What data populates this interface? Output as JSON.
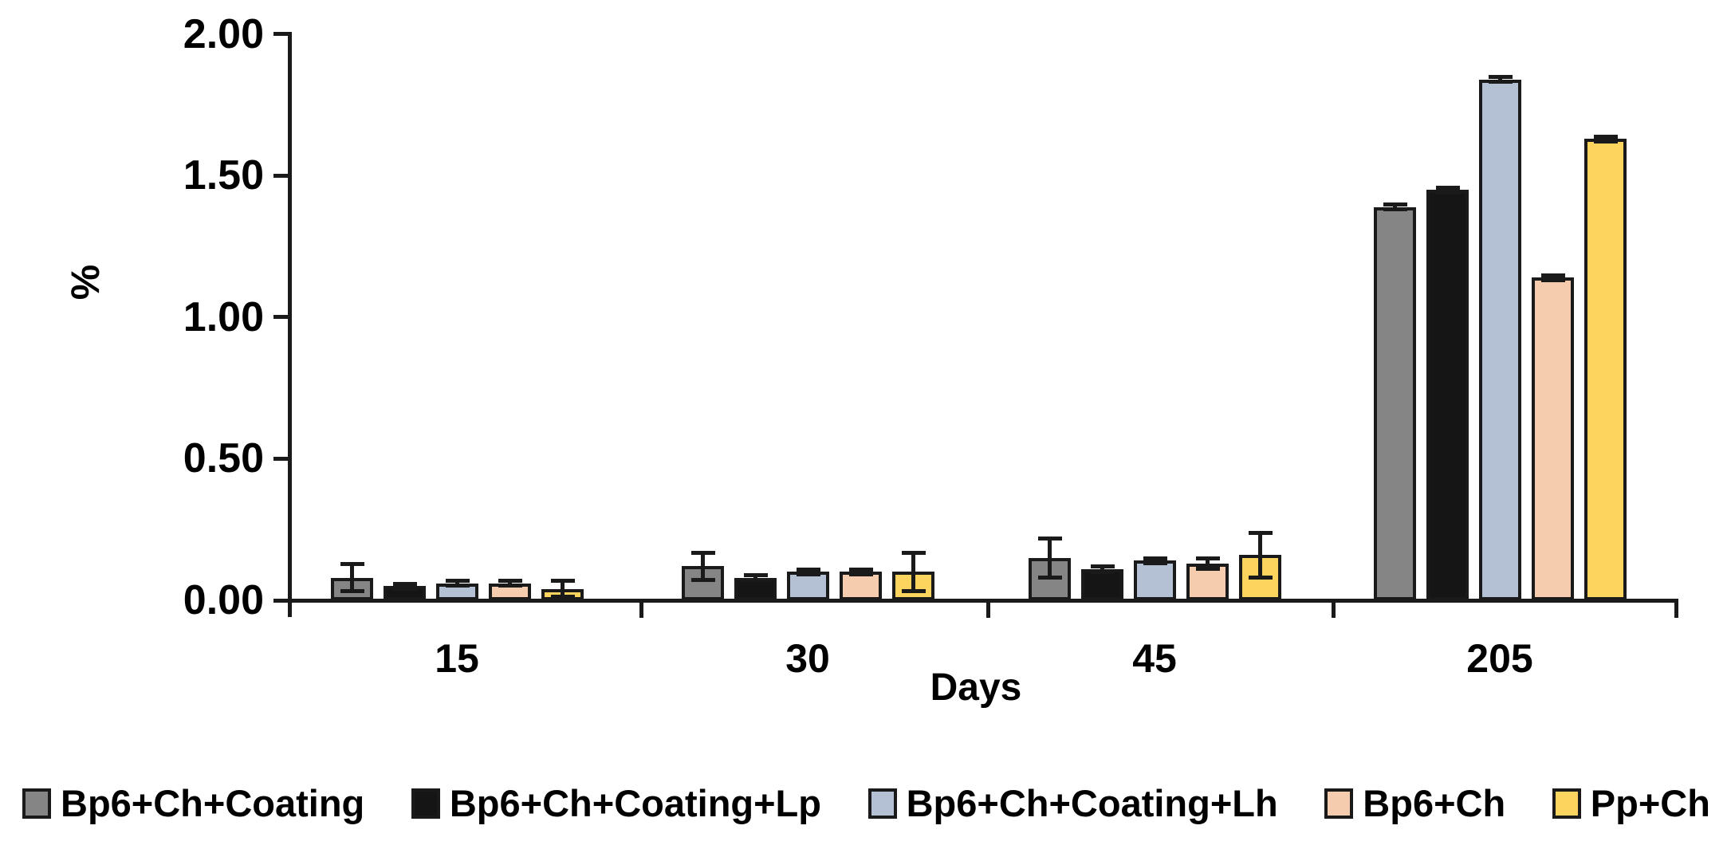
{
  "figure": {
    "background": "#ffffff",
    "axis_color": "#1a1a1a"
  },
  "chart_data": {
    "type": "bar",
    "title": "",
    "xlabel": "Days",
    "ylabel": "%",
    "ylim": [
      0,
      2
    ],
    "yticks": [
      "2.00",
      "1.50",
      "1.00",
      "0.50",
      "0.00"
    ],
    "ytick_values": [
      2.0,
      1.5,
      1.0,
      0.5,
      0.0
    ],
    "grid": false,
    "legend_position": "bottom",
    "error_bars": true,
    "categories": [
      "15",
      "30",
      "45",
      "205"
    ],
    "series": [
      {
        "name": "Bp6+Ch+Coating",
        "color": "#858585",
        "values": [
          0.08,
          0.12,
          0.15,
          1.39
        ],
        "errors": [
          0.05,
          0.05,
          0.07,
          0.01
        ]
      },
      {
        "name": "Bp6+Ch+Coating+Lp",
        "color": "#151515",
        "values": [
          0.05,
          0.08,
          0.11,
          1.45
        ],
        "errors": [
          0.01,
          0.01,
          0.01,
          0.01
        ]
      },
      {
        "name": "Bp6+Ch+Coating+Lh",
        "color": "#b4c0d4",
        "values": [
          0.06,
          0.1,
          0.14,
          1.84
        ],
        "errors": [
          0.01,
          0.01,
          0.01,
          0.01
        ]
      },
      {
        "name": "Bp6+Ch",
        "color": "#f6ccae",
        "values": [
          0.06,
          0.1,
          0.13,
          1.14
        ],
        "errors": [
          0.01,
          0.01,
          0.02,
          0.01
        ]
      },
      {
        "name": "Pp+Ch",
        "color": "#fcd45e",
        "values": [
          0.04,
          0.1,
          0.16,
          1.63
        ],
        "errors": [
          0.03,
          0.07,
          0.08,
          0.01
        ]
      }
    ]
  }
}
